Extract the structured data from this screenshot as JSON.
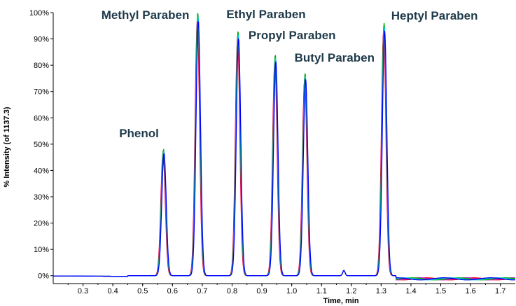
{
  "header_text": "",
  "chart_data": {
    "type": "line",
    "xlabel": "Time, min",
    "ylabel": "% Intensity (of 1137.3)",
    "xlim": [
      0.2,
      1.75
    ],
    "ylim": [
      -3,
      100
    ],
    "x_ticks": [
      "0.3",
      "0.4",
      "0.5",
      "0.6",
      "0.7",
      "0.8",
      "0.9",
      "1.0",
      "1.1",
      "1.2",
      "1.3",
      "1.4",
      "1.5",
      "1.6",
      "1.7"
    ],
    "y_ticks": [
      "0%",
      "10%",
      "20%",
      "30%",
      "40%",
      "50%",
      "60%",
      "70%",
      "80%",
      "90%",
      "100%"
    ],
    "grid": false,
    "peaks": [
      {
        "name": "Phenol",
        "x": 0.57,
        "y": 48
      },
      {
        "name": "Methyl Paraben",
        "x": 0.685,
        "y": 100
      },
      {
        "name": "Ethyl Paraben",
        "x": 0.82,
        "y": 93
      },
      {
        "name": "Propyl Paraben",
        "x": 0.945,
        "y": 84
      },
      {
        "name": "Butyl Paraben",
        "x": 1.045,
        "y": 77
      },
      {
        "name": "Heptyl Paraben",
        "x": 1.31,
        "y": 96
      }
    ],
    "series": [
      {
        "color": "#ff0000"
      },
      {
        "color": "#cc00cc"
      },
      {
        "color": "#00aa00"
      },
      {
        "color": "#00cccc"
      },
      {
        "color": "#0000ff"
      }
    ]
  }
}
